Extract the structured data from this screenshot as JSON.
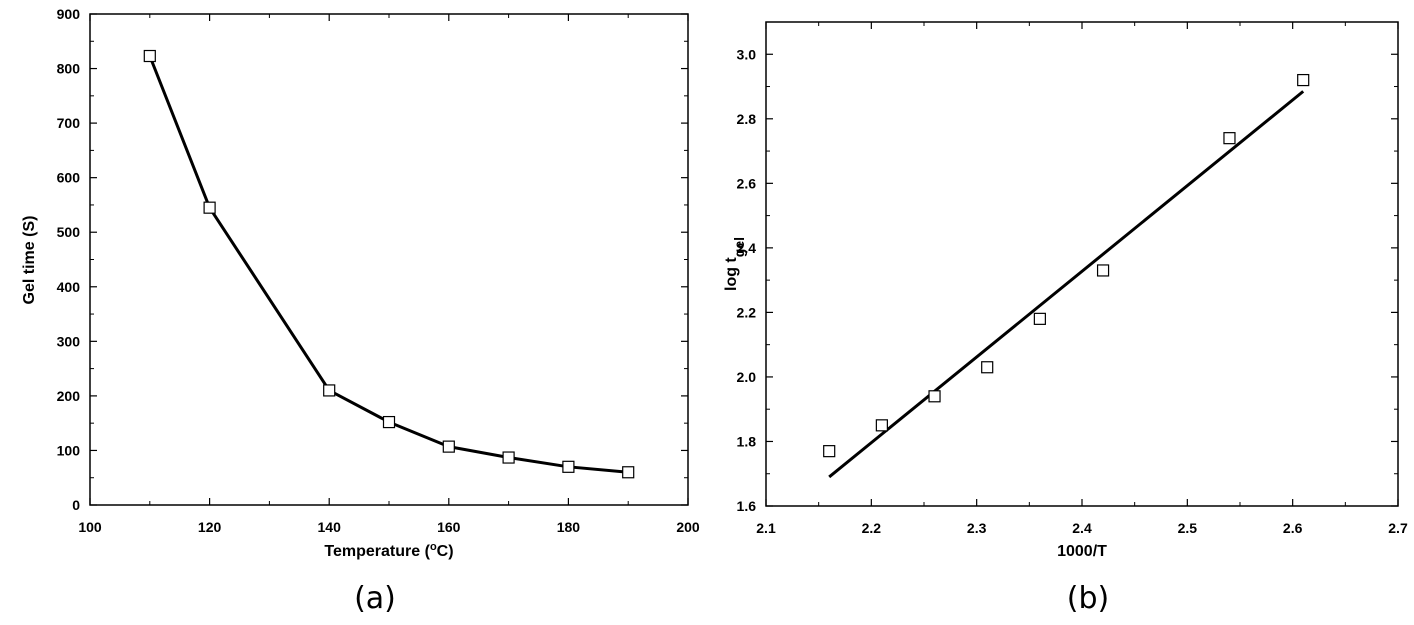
{
  "chart_data": [
    {
      "type": "line",
      "panel_label": "(a)",
      "xlabel": "Temperature (",
      "xlabel_sup": "o",
      "xlabel_tail": "C)",
      "ylabel": "Gel time (S)",
      "xlim": [
        100,
        200
      ],
      "ylim": [
        0,
        900
      ],
      "xticks": [
        100,
        120,
        140,
        160,
        180,
        200
      ],
      "yticks": [
        0,
        100,
        200,
        300,
        400,
        500,
        600,
        700,
        800,
        900
      ],
      "grid": false,
      "series": [
        {
          "marker": "open-square",
          "line": "solid",
          "x": [
            110,
            120,
            140,
            150,
            160,
            170,
            180,
            190
          ],
          "y": [
            823,
            545,
            210,
            152,
            107,
            87,
            70,
            60
          ]
        }
      ]
    },
    {
      "type": "scatter",
      "panel_label": "(b)",
      "xlabel": "1000/T",
      "ylabel": "log t",
      "ylabel_sub": "gel",
      "xlim": [
        2.1,
        2.7
      ],
      "ylim": [
        1.6,
        3.1
      ],
      "xticks": [
        "2.1",
        "2.2",
        "2.3",
        "2.4",
        "2.5",
        "2.6",
        "2.7"
      ],
      "yticks": [
        "1.6",
        "1.8",
        "2.0",
        "2.2",
        "2.4",
        "2.6",
        "2.8",
        "3.0"
      ],
      "grid": false,
      "series": [
        {
          "marker": "open-square",
          "x": [
            2.16,
            2.21,
            2.26,
            2.31,
            2.36,
            2.42,
            2.54,
            2.61
          ],
          "y": [
            1.77,
            1.85,
            1.94,
            2.03,
            2.18,
            2.33,
            2.74,
            2.92
          ]
        }
      ],
      "fit_line": {
        "x": [
          2.16,
          2.61
        ],
        "y": [
          1.69,
          2.885
        ]
      }
    }
  ]
}
